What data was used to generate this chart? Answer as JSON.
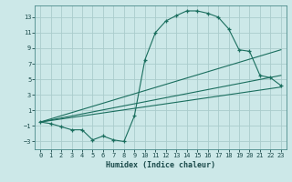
{
  "bg_color": "#cce8e8",
  "grid_color": "#aacccc",
  "line_color": "#1a6e5e",
  "xlabel": "Humidex (Indice chaleur)",
  "xlim": [
    -0.5,
    23.5
  ],
  "ylim": [
    -4,
    14.5
  ],
  "yticks": [
    -3,
    -1,
    1,
    3,
    5,
    7,
    9,
    11,
    13
  ],
  "xticks": [
    0,
    1,
    2,
    3,
    4,
    5,
    6,
    7,
    8,
    9,
    10,
    11,
    12,
    13,
    14,
    15,
    16,
    17,
    18,
    19,
    20,
    21,
    22,
    23
  ],
  "main_x": [
    0,
    1,
    2,
    3,
    4,
    5,
    6,
    7,
    8,
    9,
    10,
    11,
    12,
    13,
    14,
    15,
    16,
    17,
    18,
    19,
    20,
    21,
    22,
    23
  ],
  "main_y": [
    -0.5,
    -0.7,
    -1.1,
    -1.5,
    -1.5,
    -2.8,
    -2.3,
    -2.8,
    -3.0,
    0.3,
    7.5,
    11.0,
    12.5,
    13.2,
    13.8,
    13.8,
    13.5,
    13.0,
    11.5,
    8.8,
    8.6,
    5.5,
    5.2,
    4.2
  ],
  "line2_x": [
    0,
    23
  ],
  "line2_y": [
    -0.5,
    8.8
  ],
  "line3_x": [
    0,
    23
  ],
  "line3_y": [
    -0.5,
    5.5
  ],
  "line4_x": [
    0,
    23
  ],
  "line4_y": [
    -0.5,
    4.0
  ]
}
